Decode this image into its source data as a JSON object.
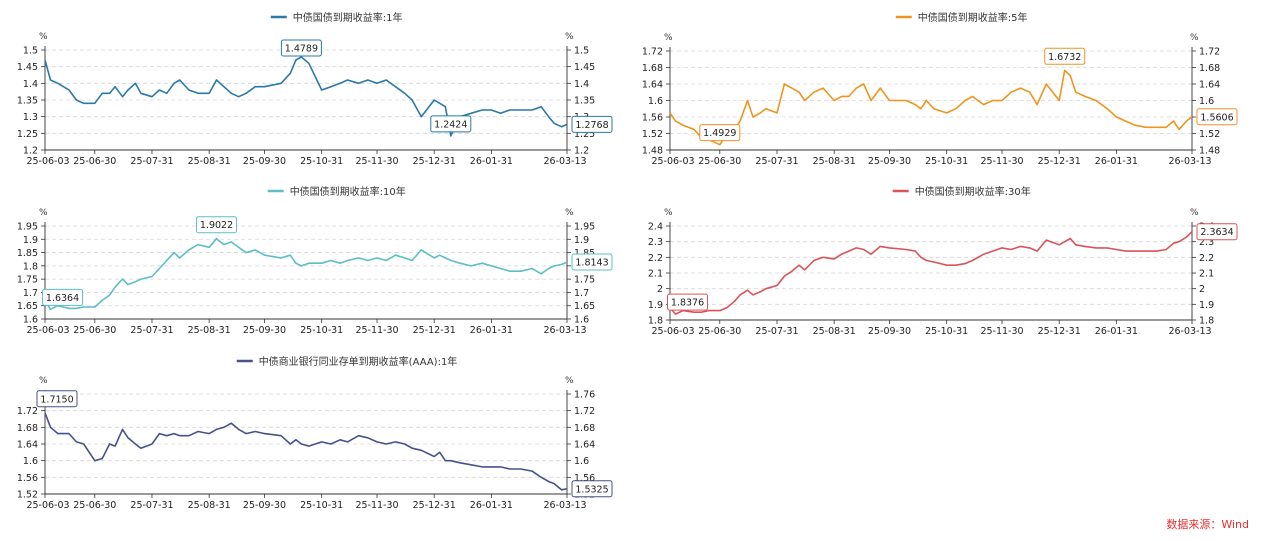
{
  "source_text": "数据来源：Wind",
  "chart_data": [
    {
      "type": "line",
      "title": "中债国债到期收益率:1年",
      "color": "#2a79a8",
      "unit_label": "%",
      "x_ticks": [
        "25-06-03",
        "25-06-30",
        "25-07-31",
        "25-08-31",
        "25-09-30",
        "25-10-31",
        "25-11-30",
        "25-12-31",
        "26-01-31",
        "26-03-13"
      ],
      "y_ticks": [
        "1.2",
        "1.25",
        "1.3",
        "1.35",
        "1.4",
        "1.45",
        "1.5"
      ],
      "ylim": [
        1.2,
        1.5
      ],
      "x": [
        "25-06-03",
        "25-06-06",
        "25-06-10",
        "25-06-16",
        "25-06-20",
        "25-06-24",
        "25-06-30",
        "25-07-04",
        "25-07-08",
        "25-07-11",
        "25-07-15",
        "25-07-18",
        "25-07-22",
        "25-07-25",
        "25-07-31",
        "25-08-04",
        "25-08-08",
        "25-08-12",
        "25-08-15",
        "25-08-20",
        "25-08-25",
        "25-08-31",
        "25-09-04",
        "25-09-08",
        "25-09-12",
        "25-09-16",
        "25-09-20",
        "25-09-25",
        "25-09-30",
        "25-10-09",
        "25-10-14",
        "25-10-17",
        "25-10-20",
        "25-10-24",
        "25-10-31",
        "25-11-05",
        "25-11-10",
        "25-11-14",
        "25-11-20",
        "25-11-25",
        "25-11-30",
        "25-12-05",
        "25-12-10",
        "25-12-15",
        "25-12-19",
        "25-12-24",
        "25-12-31",
        "26-01-03",
        "26-01-06",
        "26-01-09",
        "26-01-14",
        "26-01-20",
        "26-01-26",
        "26-01-31",
        "26-02-05",
        "26-02-10",
        "26-02-16",
        "26-02-22",
        "26-02-27",
        "26-03-03",
        "26-03-06",
        "26-03-10",
        "26-03-13"
      ],
      "values": [
        1.47,
        1.41,
        1.4,
        1.38,
        1.35,
        1.34,
        1.34,
        1.37,
        1.37,
        1.39,
        1.36,
        1.38,
        1.4,
        1.37,
        1.36,
        1.38,
        1.37,
        1.4,
        1.41,
        1.38,
        1.37,
        1.37,
        1.41,
        1.39,
        1.37,
        1.36,
        1.37,
        1.39,
        1.39,
        1.4,
        1.43,
        1.47,
        1.4789,
        1.46,
        1.38,
        1.39,
        1.4,
        1.41,
        1.4,
        1.41,
        1.4,
        1.41,
        1.39,
        1.37,
        1.35,
        1.3,
        1.35,
        1.34,
        1.33,
        1.2424,
        1.3,
        1.31,
        1.32,
        1.32,
        1.31,
        1.32,
        1.32,
        1.32,
        1.33,
        1.3,
        1.28,
        1.27,
        1.2768
      ],
      "labels": [
        {
          "text": "1.4789",
          "x": "25-10-20",
          "y": 1.4789
        },
        {
          "text": "1.2424",
          "x": "26-01-09",
          "y": 1.2424
        },
        {
          "text": "1.2768",
          "x": "26-03-13",
          "y": 1.2768
        }
      ]
    },
    {
      "type": "line",
      "title": "中债国债到期收益率:5年",
      "color": "#f0941f",
      "unit_label": "%",
      "x_ticks": [
        "25-06-03",
        "25-06-30",
        "25-07-31",
        "25-08-31",
        "25-09-30",
        "25-10-31",
        "25-11-30",
        "25-12-31",
        "26-01-31",
        "26-03-13"
      ],
      "y_ticks": [
        "1.48",
        "1.52",
        "1.56",
        "1.6",
        "1.64",
        "1.68",
        "1.72"
      ],
      "ylim": [
        1.48,
        1.72
      ],
      "x": [
        "25-06-03",
        "25-06-06",
        "25-06-10",
        "25-06-16",
        "25-06-20",
        "25-06-24",
        "25-06-30",
        "25-07-04",
        "25-07-08",
        "25-07-11",
        "25-07-15",
        "25-07-18",
        "25-07-22",
        "25-07-25",
        "25-07-31",
        "25-08-04",
        "25-08-08",
        "25-08-12",
        "25-08-15",
        "25-08-20",
        "25-08-25",
        "25-08-31",
        "25-09-04",
        "25-09-08",
        "25-09-12",
        "25-09-16",
        "25-09-20",
        "25-09-25",
        "25-09-30",
        "25-10-09",
        "25-10-14",
        "25-10-17",
        "25-10-20",
        "25-10-24",
        "25-10-31",
        "25-11-05",
        "25-11-10",
        "25-11-14",
        "25-11-20",
        "25-11-25",
        "25-11-30",
        "25-12-05",
        "25-12-10",
        "25-12-15",
        "25-12-19",
        "25-12-24",
        "25-12-31",
        "26-01-03",
        "26-01-06",
        "26-01-09",
        "26-01-14",
        "26-01-20",
        "26-01-26",
        "26-01-31",
        "26-02-05",
        "26-02-10",
        "26-02-16",
        "26-02-22",
        "26-02-27",
        "26-03-03",
        "26-03-06",
        "26-03-10",
        "26-03-13"
      ],
      "values": [
        1.57,
        1.55,
        1.54,
        1.53,
        1.51,
        1.505,
        1.4929,
        1.52,
        1.53,
        1.55,
        1.6,
        1.56,
        1.57,
        1.58,
        1.57,
        1.64,
        1.63,
        1.62,
        1.6,
        1.62,
        1.63,
        1.6,
        1.61,
        1.61,
        1.63,
        1.64,
        1.6,
        1.63,
        1.6,
        1.6,
        1.59,
        1.58,
        1.6,
        1.58,
        1.57,
        1.58,
        1.6,
        1.61,
        1.59,
        1.6,
        1.6,
        1.62,
        1.63,
        1.62,
        1.59,
        1.64,
        1.6,
        1.6732,
        1.66,
        1.62,
        1.61,
        1.6,
        1.58,
        1.56,
        1.55,
        1.54,
        1.535,
        1.535,
        1.535,
        1.55,
        1.53,
        1.55,
        1.5606
      ],
      "labels": [
        {
          "text": "1.4929",
          "x": "25-06-30",
          "y": 1.4929
        },
        {
          "text": "1.6732",
          "x": "26-01-03",
          "y": 1.6732
        },
        {
          "text": "1.5606",
          "x": "26-03-13",
          "y": 1.5606
        }
      ]
    },
    {
      "type": "line",
      "title": "中债国债到期收益率:10年",
      "color": "#5cbfc7",
      "unit_label": "%",
      "x_ticks": [
        "25-06-03",
        "25-06-30",
        "25-07-31",
        "25-08-31",
        "25-09-30",
        "25-10-31",
        "25-11-30",
        "25-12-31",
        "26-01-31",
        "26-03-13"
      ],
      "y_ticks": [
        "1.6",
        "1.65",
        "1.7",
        "1.75",
        "1.8",
        "1.85",
        "1.9",
        "1.95"
      ],
      "ylim": [
        1.6,
        1.95
      ],
      "x": [
        "25-06-03",
        "25-06-06",
        "25-06-10",
        "25-06-16",
        "25-06-20",
        "25-06-24",
        "25-06-30",
        "25-07-04",
        "25-07-08",
        "25-07-11",
        "25-07-15",
        "25-07-18",
        "25-07-22",
        "25-07-25",
        "25-07-31",
        "25-08-04",
        "25-08-08",
        "25-08-12",
        "25-08-15",
        "25-08-20",
        "25-08-25",
        "25-08-31",
        "25-09-04",
        "25-09-08",
        "25-09-12",
        "25-09-16",
        "25-09-20",
        "25-09-25",
        "25-09-30",
        "25-10-09",
        "25-10-14",
        "25-10-17",
        "25-10-20",
        "25-10-24",
        "25-10-31",
        "25-11-05",
        "25-11-10",
        "25-11-14",
        "25-11-20",
        "25-11-25",
        "25-11-30",
        "25-12-05",
        "25-12-10",
        "25-12-15",
        "25-12-19",
        "25-12-24",
        "25-12-31",
        "26-01-03",
        "26-01-06",
        "26-01-09",
        "26-01-14",
        "26-01-20",
        "26-01-26",
        "26-01-31",
        "26-02-05",
        "26-02-10",
        "26-02-16",
        "26-02-22",
        "26-02-27",
        "26-03-03",
        "26-03-06",
        "26-03-10",
        "26-03-13"
      ],
      "values": [
        1.67,
        1.6364,
        1.65,
        1.64,
        1.64,
        1.645,
        1.645,
        1.67,
        1.69,
        1.72,
        1.75,
        1.73,
        1.74,
        1.75,
        1.76,
        1.79,
        1.82,
        1.85,
        1.83,
        1.86,
        1.88,
        1.87,
        1.9022,
        1.88,
        1.89,
        1.87,
        1.85,
        1.86,
        1.84,
        1.83,
        1.84,
        1.81,
        1.8,
        1.81,
        1.81,
        1.82,
        1.81,
        1.82,
        1.83,
        1.82,
        1.83,
        1.82,
        1.84,
        1.83,
        1.82,
        1.86,
        1.83,
        1.84,
        1.83,
        1.82,
        1.81,
        1.8,
        1.81,
        1.8,
        1.79,
        1.78,
        1.78,
        1.79,
        1.77,
        1.79,
        1.8,
        1.805,
        1.8143
      ],
      "labels": [
        {
          "text": "1.6364",
          "x": "25-06-06",
          "y": 1.6364
        },
        {
          "text": "1.9022",
          "x": "25-09-04",
          "y": 1.9022
        },
        {
          "text": "1.8143",
          "x": "26-03-13",
          "y": 1.8143
        }
      ]
    },
    {
      "type": "line",
      "title": "中债国债到期收益率:30年",
      "color": "#d9545a",
      "unit_label": "%",
      "x_ticks": [
        "25-06-03",
        "25-06-30",
        "25-07-31",
        "25-08-31",
        "25-09-30",
        "25-10-31",
        "25-11-30",
        "25-12-31",
        "26-01-31",
        "26-03-13"
      ],
      "y_ticks": [
        "1.8",
        "1.9",
        "2",
        "2.1",
        "2.2",
        "2.3",
        "2.4"
      ],
      "ylim": [
        1.8,
        2.4
      ],
      "x": [
        "25-06-03",
        "25-06-06",
        "25-06-10",
        "25-06-16",
        "25-06-20",
        "25-06-24",
        "25-06-30",
        "25-07-04",
        "25-07-08",
        "25-07-11",
        "25-07-15",
        "25-07-18",
        "25-07-22",
        "25-07-25",
        "25-07-31",
        "25-08-04",
        "25-08-08",
        "25-08-12",
        "25-08-15",
        "25-08-20",
        "25-08-25",
        "25-08-31",
        "25-09-04",
        "25-09-08",
        "25-09-12",
        "25-09-16",
        "25-09-20",
        "25-09-25",
        "25-09-30",
        "25-10-09",
        "25-10-14",
        "25-10-17",
        "25-10-20",
        "25-10-24",
        "25-10-31",
        "25-11-05",
        "25-11-10",
        "25-11-14",
        "25-11-20",
        "25-11-25",
        "25-11-30",
        "25-12-05",
        "25-12-10",
        "25-12-15",
        "25-12-19",
        "25-12-24",
        "25-12-31",
        "26-01-03",
        "26-01-06",
        "26-01-09",
        "26-01-14",
        "26-01-20",
        "26-01-26",
        "26-01-31",
        "26-02-05",
        "26-02-10",
        "26-02-16",
        "26-02-22",
        "26-02-27",
        "26-03-03",
        "26-03-06",
        "26-03-10",
        "26-03-13"
      ],
      "values": [
        1.88,
        1.8376,
        1.86,
        1.85,
        1.85,
        1.86,
        1.86,
        1.88,
        1.92,
        1.96,
        1.99,
        1.96,
        1.98,
        2.0,
        2.02,
        2.08,
        2.11,
        2.15,
        2.12,
        2.18,
        2.2,
        2.19,
        2.22,
        2.24,
        2.26,
        2.25,
        2.22,
        2.27,
        2.26,
        2.25,
        2.24,
        2.2,
        2.18,
        2.17,
        2.15,
        2.15,
        2.16,
        2.18,
        2.22,
        2.24,
        2.26,
        2.25,
        2.27,
        2.26,
        2.24,
        2.31,
        2.28,
        2.3,
        2.32,
        2.28,
        2.27,
        2.26,
        2.26,
        2.25,
        2.24,
        2.24,
        2.24,
        2.24,
        2.25,
        2.29,
        2.3,
        2.33,
        2.3634
      ],
      "labels": [
        {
          "text": "1.8376",
          "x": "25-06-06",
          "y": 1.8376
        },
        {
          "text": "2.3634",
          "x": "26-03-13",
          "y": 2.3634
        }
      ]
    },
    {
      "type": "line",
      "title": "中债商业银行同业存单到期收益率(AAA):1年",
      "color": "#47528a",
      "unit_label": "%",
      "x_ticks": [
        "25-06-03",
        "25-06-30",
        "25-07-31",
        "25-08-31",
        "25-09-30",
        "25-10-31",
        "25-11-30",
        "25-12-31",
        "26-01-31",
        "26-03-13"
      ],
      "y_ticks": [
        "1.52",
        "1.56",
        "1.6",
        "1.64",
        "1.68",
        "1.72",
        "1.76"
      ],
      "y_ticks_left_shown": [
        "1.52",
        "1.56",
        "1.6",
        "1.64",
        "1.68",
        "1.72"
      ],
      "y_ticks_right_shown": [
        "1.52",
        "1.56",
        "1.6",
        "1.64",
        "1.68",
        "1.72",
        "1.76"
      ],
      "ylim": [
        1.52,
        1.76
      ],
      "x": [
        "25-06-03",
        "25-06-06",
        "25-06-10",
        "25-06-16",
        "25-06-20",
        "25-06-24",
        "25-06-30",
        "25-07-04",
        "25-07-08",
        "25-07-11",
        "25-07-15",
        "25-07-18",
        "25-07-22",
        "25-07-25",
        "25-07-31",
        "25-08-04",
        "25-08-08",
        "25-08-12",
        "25-08-15",
        "25-08-20",
        "25-08-25",
        "25-08-31",
        "25-09-04",
        "25-09-08",
        "25-09-12",
        "25-09-16",
        "25-09-20",
        "25-09-25",
        "25-09-30",
        "25-10-09",
        "25-10-14",
        "25-10-17",
        "25-10-20",
        "25-10-24",
        "25-10-31",
        "25-11-05",
        "25-11-10",
        "25-11-14",
        "25-11-20",
        "25-11-25",
        "25-11-30",
        "25-12-05",
        "25-12-10",
        "25-12-15",
        "25-12-19",
        "25-12-24",
        "25-12-31",
        "26-01-03",
        "26-01-06",
        "26-01-09",
        "26-01-14",
        "26-01-20",
        "26-01-26",
        "26-01-31",
        "26-02-05",
        "26-02-10",
        "26-02-16",
        "26-02-22",
        "26-02-27",
        "26-03-03",
        "26-03-06",
        "26-03-10",
        "26-03-13"
      ],
      "values": [
        1.715,
        1.68,
        1.665,
        1.665,
        1.645,
        1.64,
        1.6,
        1.605,
        1.64,
        1.635,
        1.675,
        1.655,
        1.64,
        1.63,
        1.64,
        1.665,
        1.66,
        1.665,
        1.66,
        1.66,
        1.67,
        1.665,
        1.675,
        1.68,
        1.69,
        1.675,
        1.665,
        1.67,
        1.665,
        1.66,
        1.64,
        1.65,
        1.64,
        1.635,
        1.645,
        1.64,
        1.65,
        1.645,
        1.66,
        1.655,
        1.645,
        1.64,
        1.645,
        1.64,
        1.63,
        1.625,
        1.61,
        1.62,
        1.6,
        1.6,
        1.595,
        1.59,
        1.585,
        1.585,
        1.585,
        1.58,
        1.58,
        1.575,
        1.56,
        1.55,
        1.545,
        1.53,
        1.5325
      ],
      "labels": [
        {
          "text": "1.7150",
          "x": "25-06-03",
          "y": 1.715
        },
        {
          "text": "1.5325",
          "x": "26-03-13",
          "y": 1.5325
        }
      ]
    }
  ]
}
